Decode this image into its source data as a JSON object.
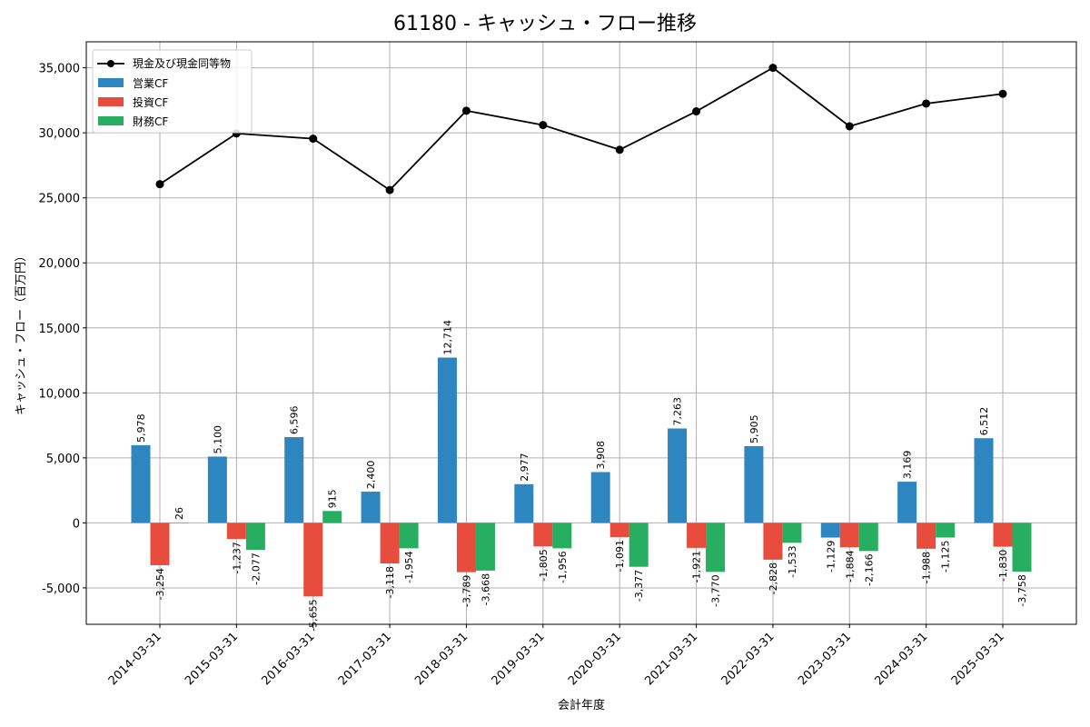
{
  "chart_data": {
    "type": "bar",
    "title": "61180 - キャッシュ・フロー推移",
    "xlabel": "会計年度",
    "ylabel": "キャッシュ・フロー（百万円）",
    "ylim": [
      -7800,
      37000
    ],
    "yticks": [
      -5000,
      0,
      5000,
      10000,
      15000,
      20000,
      25000,
      30000,
      35000
    ],
    "yticklabels": [
      "-5,000",
      "0",
      "5,000",
      "10,000",
      "15,000",
      "20,000",
      "25,000",
      "30,000",
      "35,000"
    ],
    "grid": true,
    "legend_position": "top-left",
    "categories": [
      "2014-03-31",
      "2015-03-31",
      "2016-03-31",
      "2017-03-31",
      "2018-03-31",
      "2019-03-31",
      "2020-03-31",
      "2021-03-31",
      "2022-03-31",
      "2023-03-31",
      "2024-03-31",
      "2025-03-31"
    ],
    "line_series": {
      "name": "現金及び現金同等物",
      "color": "#000000",
      "values": [
        26050,
        29950,
        29550,
        25600,
        31700,
        30600,
        28700,
        31650,
        35000,
        30500,
        32250,
        33000
      ]
    },
    "series": [
      {
        "name": "営業CF",
        "color": "#2e86c1",
        "values": [
          5978,
          5100,
          6596,
          2400,
          12714,
          2977,
          3908,
          7263,
          5905,
          -1129,
          3169,
          6512
        ],
        "labels": [
          "5,978",
          "5,100",
          "6,596",
          "2,400",
          "12,714",
          "2,977",
          "3,908",
          "7,263",
          "5,905",
          "-1,129",
          "3,169",
          "6,512"
        ]
      },
      {
        "name": "投資CF",
        "color": "#e74c3c",
        "values": [
          -3254,
          -1237,
          -5655,
          -3118,
          -3789,
          -1805,
          -1091,
          -1921,
          -2828,
          -1884,
          -1988,
          -1830
        ],
        "labels": [
          "-3,254",
          "-1,237",
          "-5,655",
          "-3,118",
          "-3,789",
          "-1,805",
          "-1,091",
          "-1,921",
          "-2,828",
          "-1,884",
          "-1,988",
          "-1,830"
        ]
      },
      {
        "name": "財務CF",
        "color": "#27ae60",
        "values": [
          26,
          -2077,
          915,
          -1954,
          -3668,
          -1956,
          -3377,
          -3770,
          -1533,
          -2166,
          -1125,
          -3758
        ],
        "labels": [
          "26",
          "-2,077",
          "915",
          "-1,954",
          "-3,668",
          "-1,956",
          "-3,377",
          "-3,770",
          "-1,533",
          "-2,166",
          "-1,125",
          "-3,758"
        ]
      }
    ]
  }
}
